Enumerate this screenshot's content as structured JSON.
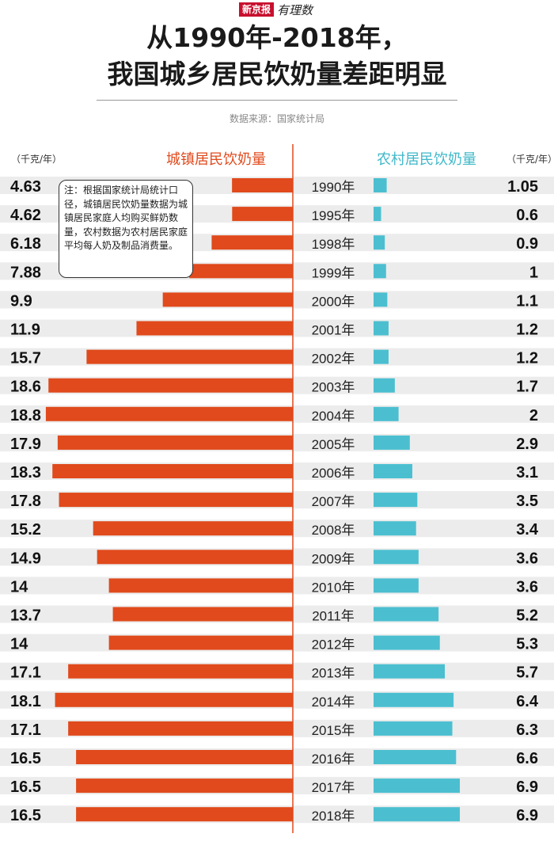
{
  "brand": {
    "badge": "新京报",
    "script": "有理数"
  },
  "title": {
    "line1": "从1990年-2018年，",
    "line2": "我国城乡居民饮奶量差距明显"
  },
  "source": "数据来源：国家统计局",
  "note": "注：根据国家统计局统计口径，城镇居民饮奶量数据为城镇居民家庭人均购买鲜奶数量，农村数据为农村居民家庭平均每人奶及制品消费量。",
  "colors": {
    "urban": "#e04a1c",
    "rural": "#4bbfd0",
    "band": "#ececec",
    "divider": "#e04a1c"
  },
  "chart_data": {
    "type": "bar",
    "title": "从1990年-2018年，我国城乡居民饮奶量差距明显",
    "categories": [
      "1990年",
      "1995年",
      "1998年",
      "1999年",
      "2000年",
      "2001年",
      "2002年",
      "2003年",
      "2004年",
      "2005年",
      "2006年",
      "2007年",
      "2008年",
      "2009年",
      "2010年",
      "2011年",
      "2012年",
      "2013年",
      "2014年",
      "2015年",
      "2016年",
      "2017年",
      "2018年"
    ],
    "series": [
      {
        "name": "城镇居民饮奶量",
        "unit": "（千克/年）",
        "values": [
          4.63,
          4.62,
          6.18,
          7.88,
          9.9,
          11.9,
          15.7,
          18.6,
          18.8,
          17.9,
          18.3,
          17.8,
          15.2,
          14.9,
          14,
          13.7,
          14,
          17.1,
          18.1,
          17.1,
          16.5,
          16.5,
          16.5
        ],
        "labels": [
          "4.63",
          "4.62",
          "6.18",
          "7.88",
          "9.9",
          "11.9",
          "15.7",
          "18.6",
          "18.8",
          "17.9",
          "18.3",
          "17.8",
          "15.2",
          "14.9",
          "14",
          "13.7",
          "14",
          "17.1",
          "18.1",
          "17.1",
          "16.5",
          "16.5",
          "16.5"
        ]
      },
      {
        "name": "农村居民饮奶量",
        "unit": "（千克/年）",
        "values": [
          1.05,
          0.6,
          0.9,
          1,
          1.1,
          1.2,
          1.2,
          1.7,
          2,
          2.9,
          3.1,
          3.5,
          3.4,
          3.6,
          3.6,
          5.2,
          5.3,
          5.7,
          6.4,
          6.3,
          6.6,
          6.9,
          6.9
        ],
        "labels": [
          "1.05",
          "0.6",
          "0.9",
          "1",
          "1.1",
          "1.2",
          "1.2",
          "1.7",
          "2",
          "2.9",
          "3.1",
          "3.5",
          "3.4",
          "3.6",
          "3.6",
          "5.2",
          "5.3",
          "5.7",
          "6.4",
          "6.3",
          "6.6",
          "6.9",
          "6.9"
        ]
      }
    ]
  }
}
